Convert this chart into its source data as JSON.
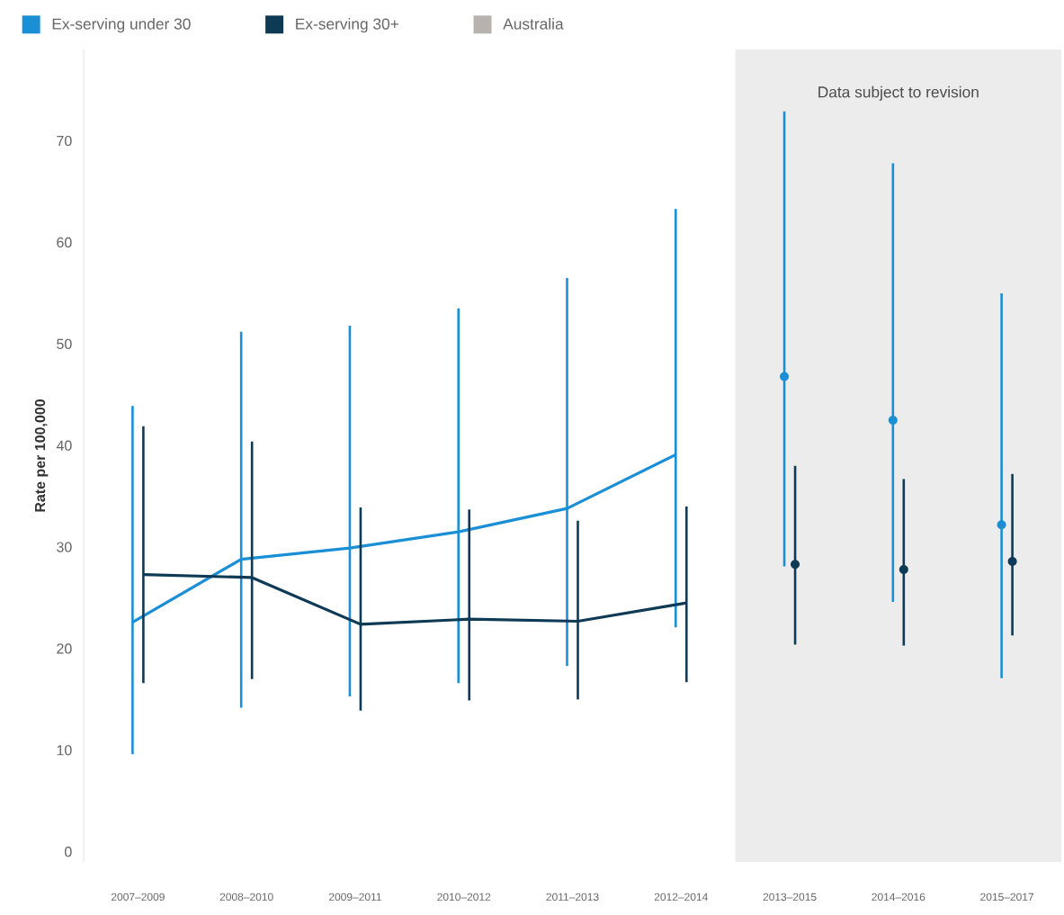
{
  "chart_data": {
    "type": "line",
    "ylabel": "Rate per 100,000",
    "categories": [
      "2007–2009",
      "2008–2010",
      "2009–2011",
      "2010–2012",
      "2011–2013",
      "2012–2014",
      "2013–2015",
      "2014–2016",
      "2015–2017"
    ],
    "series": [
      {
        "name": "Ex-serving under 30",
        "color": "#1b8fd6",
        "values": [
          22.6,
          28.8,
          29.9,
          31.5,
          33.8,
          39.1,
          null,
          null,
          null
        ],
        "errors": [
          [
            9.6,
            43.9
          ],
          [
            14.2,
            51.2
          ],
          [
            15.3,
            51.8
          ],
          [
            16.6,
            53.5
          ],
          [
            18.3,
            56.5
          ],
          [
            22.1,
            63.3
          ],
          null,
          null,
          null
        ]
      },
      {
        "name": "Ex-serving 30+",
        "color": "#0e3a56",
        "values": [
          27.3,
          27.0,
          22.4,
          22.9,
          22.7,
          24.5,
          null,
          null,
          null
        ],
        "errors": [
          [
            16.6,
            41.9
          ],
          [
            17.0,
            40.4
          ],
          [
            13.9,
            33.9
          ],
          [
            14.9,
            33.7
          ],
          [
            15.0,
            32.6
          ],
          [
            16.7,
            34.0
          ],
          null,
          null,
          null
        ]
      },
      {
        "type": "scatter",
        "marker": "circle",
        "color": "#1b8fd6",
        "values": [
          null,
          null,
          null,
          null,
          null,
          null,
          46.8,
          42.5,
          32.2
        ],
        "errors": [
          null,
          null,
          null,
          null,
          null,
          null,
          [
            28.1,
            72.9
          ],
          [
            24.6,
            67.8
          ],
          [
            17.1,
            55.0
          ]
        ]
      },
      {
        "type": "scatter",
        "marker": "circle",
        "color": "#0e3a56",
        "values": [
          null,
          null,
          null,
          null,
          null,
          null,
          28.3,
          27.8,
          28.6
        ],
        "errors": [
          null,
          null,
          null,
          null,
          null,
          null,
          [
            20.4,
            38.0
          ],
          [
            20.3,
            36.7
          ],
          [
            21.3,
            37.2
          ]
        ]
      },
      {
        "name": "Australia",
        "color": "#b8b2ae",
        "values": [
          null,
          null,
          null,
          null,
          null,
          null,
          null,
          null,
          null
        ]
      }
    ],
    "bands": [
      {
        "axis": "x",
        "from": "2013–2015",
        "to": "2015–2017",
        "label": "Data subject to revision",
        "color": "#ececec"
      }
    ],
    "ylim": [
      -1,
      79
    ],
    "yticks": [
      0,
      10,
      20,
      30,
      40,
      50,
      60,
      70
    ],
    "legend": "top left"
  }
}
